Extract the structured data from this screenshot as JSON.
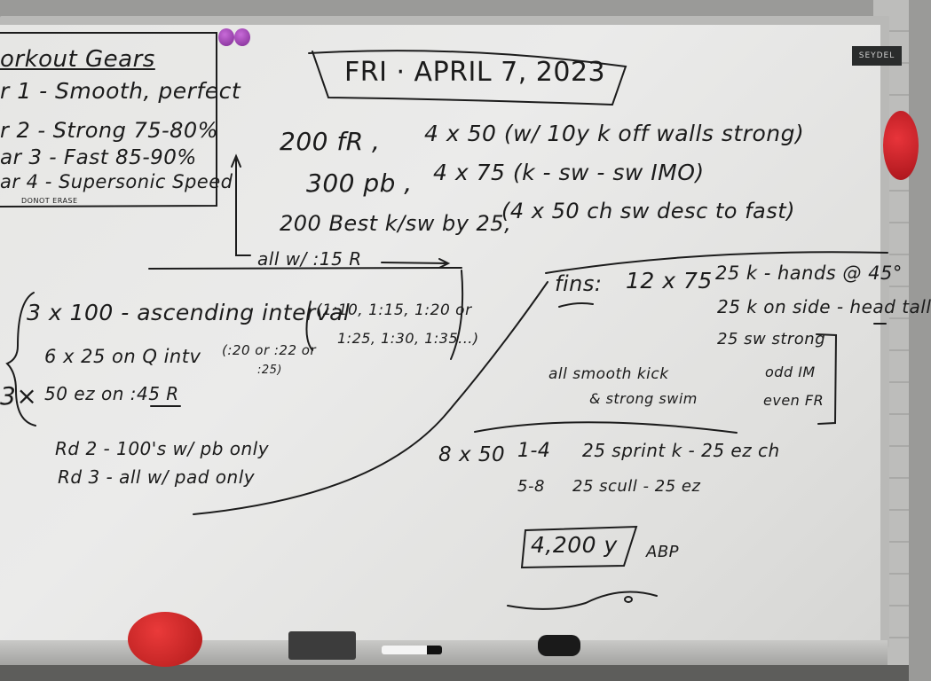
{
  "board": {
    "brand": "SEYDEL",
    "gears": {
      "title": "orkout Gears",
      "items": [
        "r 1 - Smooth, perfect",
        "r 2 - Strong 75-80%",
        "ar 3 - Fast 85-90%",
        "ar 4 - Supersonic Speed"
      ],
      "note": "DONOT ERASE"
    },
    "date": "FRI · APRIL 7, 2023",
    "warmup": {
      "l1a": "200 fR ,",
      "l1b": "4 x 50 (w/ 10y k off walls strong)",
      "l2a": "300 pb ,",
      "l2b": "4 x 75 (k - sw - sw IMO)",
      "l3a": "200 Best k/sw by 25,",
      "l3b": "(4 x 50 ch sw desc to fast)",
      "rest": "all w/ :15 R"
    },
    "main": {
      "rounds": "3×",
      "l1": "3 x 100 - ascending interval",
      "l1note_a": "(1:10, 1:15, 1:20 or",
      "l1note_b": "1:25, 1:30, 1:35...)",
      "l2": "6 x 25 on Q intv",
      "l2note_a": "(:20 or :22 or",
      "l2note_b": ":25)",
      "l3": "50 ez on :45 R",
      "rd2": "Rd 2 - 100's w/ pb only",
      "rd3": "Rd 3 - all w/ pad only"
    },
    "fins": {
      "label": "fins:",
      "set": "12 x 75",
      "d1": "25 k - hands @ 45°",
      "d2": "25 k on side - head tall",
      "d3": "25 sw strong",
      "d4": "odd IM",
      "d5": "even FR",
      "note_a": "all smooth kick",
      "note_b": "& strong swim"
    },
    "set8x50": {
      "label": "8 x 50",
      "r1": "1-4",
      "r1d": "25 sprint k - 25 ez ch",
      "r2": "5-8",
      "r2d": "25 scull - 25 ez"
    },
    "total": "4,200 y",
    "initials": "ABP"
  }
}
